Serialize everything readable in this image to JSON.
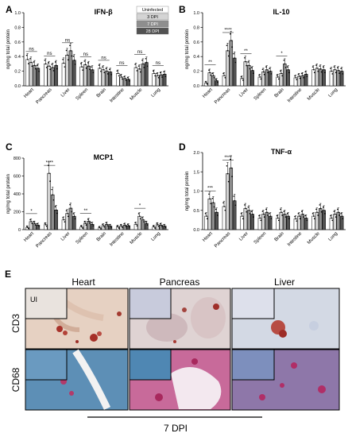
{
  "figure": {
    "scale_bar_label": "7 DPI",
    "panel_e": {
      "letter": "E",
      "columns": [
        "Heart",
        "Pancreas",
        "Liver"
      ],
      "rows": [
        "CD3",
        "CD68"
      ],
      "inset_label": "UI"
    }
  },
  "chart_data": [
    {
      "panel": "A",
      "type": "bar",
      "title": "IFN-β",
      "ylabel": "ng/mg total protein",
      "xlabel": "",
      "ylim": [
        0,
        1.0
      ],
      "yticks": [
        "0.0",
        "0.2",
        "0.4",
        "0.6",
        "0.8",
        "1.0"
      ],
      "grid": false,
      "legend": "top-right",
      "categories": [
        "Heart",
        "Pancreas",
        "Liver",
        "Spleen",
        "Brain",
        "Intestine",
        "Muscle",
        "Lung"
      ],
      "significance": [
        "ns",
        "ns",
        "ns",
        "ns",
        "ns",
        "ns",
        "ns",
        "ns"
      ],
      "series": [
        {
          "name": "Uninfected",
          "color": "#ffffff",
          "values": [
            0.36,
            0.3,
            0.31,
            0.26,
            0.24,
            0.17,
            0.25,
            0.17
          ]
        },
        {
          "name": "3 DPI",
          "color": "#d4d4d4",
          "values": [
            0.32,
            0.27,
            0.42,
            0.29,
            0.22,
            0.12,
            0.23,
            0.14
          ]
        },
        {
          "name": "7 DPI",
          "color": "#8e8e8e",
          "values": [
            0.28,
            0.25,
            0.48,
            0.27,
            0.2,
            0.1,
            0.3,
            0.15
          ]
        },
        {
          "name": "28 DPI",
          "color": "#525252",
          "values": [
            0.24,
            0.28,
            0.35,
            0.22,
            0.19,
            0.09,
            0.32,
            0.16
          ]
        }
      ]
    },
    {
      "panel": "B",
      "type": "bar",
      "title": "IL-10",
      "ylabel": "ng/mg total protein",
      "xlabel": "",
      "ylim": [
        0,
        1.0
      ],
      "yticks": [
        "0.0",
        "0.2",
        "0.4",
        "0.6",
        "0.8",
        "1.0"
      ],
      "grid": false,
      "categories": [
        "Heart",
        "Pancreas",
        "Liver",
        "Spleen",
        "Brain",
        "Intestine",
        "Muscle",
        "Lung"
      ],
      "significance": [
        "**",
        "****",
        "**",
        "",
        "*",
        "",
        "",
        ""
      ],
      "series": [
        {
          "name": "Uninfected",
          "values": [
            0.04,
            0.14,
            0.1,
            0.12,
            0.12,
            0.11,
            0.22,
            0.2
          ]
        },
        {
          "name": "3 DPI",
          "values": [
            0.18,
            0.48,
            0.33,
            0.19,
            0.17,
            0.13,
            0.24,
            0.22
          ]
        },
        {
          "name": "7 DPI",
          "values": [
            0.14,
            0.62,
            0.28,
            0.22,
            0.3,
            0.14,
            0.23,
            0.21
          ]
        },
        {
          "name": "28 DPI",
          "values": [
            0.07,
            0.38,
            0.21,
            0.2,
            0.22,
            0.16,
            0.22,
            0.2
          ]
        }
      ]
    },
    {
      "panel": "C",
      "type": "bar",
      "title": "MCP1",
      "ylabel": "ng/mg total protein",
      "xlabel": "",
      "ylim": [
        0,
        800
      ],
      "yticks": [
        "0",
        "200",
        "400",
        "600",
        "800"
      ],
      "grid": false,
      "categories": [
        "Heart",
        "Pancreas",
        "Liver",
        "Spleen",
        "Brain",
        "Intestine",
        "Muscle",
        "Lung"
      ],
      "significance": [
        "*",
        "****",
        "",
        "**",
        "",
        "",
        "*",
        ""
      ],
      "series": [
        {
          "name": "Uninfected",
          "values": [
            25,
            55,
            110,
            30,
            20,
            30,
            60,
            30
          ]
        },
        {
          "name": "3 DPI",
          "values": [
            90,
            630,
            180,
            70,
            45,
            40,
            150,
            55
          ]
        },
        {
          "name": "7 DPI",
          "values": [
            70,
            390,
            240,
            95,
            60,
            50,
            110,
            50
          ]
        },
        {
          "name": "28 DPI",
          "values": [
            50,
            220,
            150,
            60,
            40,
            45,
            70,
            40
          ]
        }
      ]
    },
    {
      "panel": "D",
      "type": "bar",
      "title": "TNF-α",
      "ylabel": "ng/mg total protein",
      "xlabel": "",
      "ylim": [
        0,
        2.0
      ],
      "yticks": [
        "0.0",
        "0.5",
        "1.0",
        "1.5",
        "2.0"
      ],
      "grid": false,
      "categories": [
        "Heart",
        "Pancreas",
        "Liver",
        "Spleen",
        "Brain",
        "Intestine",
        "Muscle",
        "Lung"
      ],
      "significance": [
        "***",
        "****",
        "",
        "",
        "",
        "",
        "",
        ""
      ],
      "series": [
        {
          "name": "Uninfected",
          "values": [
            0.35,
            0.6,
            0.35,
            0.3,
            0.3,
            0.28,
            0.35,
            0.3
          ]
        },
        {
          "name": "3 DPI",
          "values": [
            0.8,
            1.45,
            0.55,
            0.4,
            0.45,
            0.35,
            0.45,
            0.4
          ]
        },
        {
          "name": "7 DPI",
          "values": [
            0.7,
            1.6,
            0.5,
            0.45,
            0.4,
            0.4,
            0.55,
            0.45
          ]
        },
        {
          "name": "28 DPI",
          "values": [
            0.45,
            0.75,
            0.4,
            0.35,
            0.35,
            0.3,
            0.5,
            0.35
          ]
        }
      ]
    }
  ]
}
